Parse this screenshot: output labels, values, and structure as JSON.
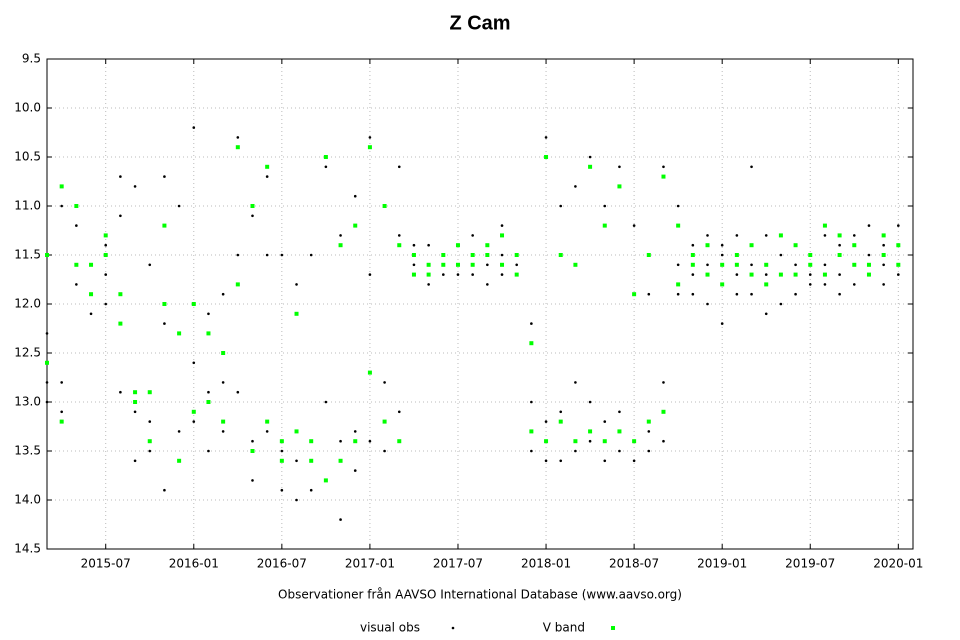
{
  "chart_data": {
    "type": "scatter",
    "title": "Z Cam",
    "x_label": "Observationer från AAVSO International Database (www.aavso.org)",
    "xlim": [
      "2015-03",
      "2020-02"
    ],
    "xticks": [
      "2015-07",
      "2016-01",
      "2016-07",
      "2017-01",
      "2017-07",
      "2018-01",
      "2018-07",
      "2019-01",
      "2019-07",
      "2020-01"
    ],
    "ylim": [
      9.5,
      14.5
    ],
    "y_inverted": true,
    "yticks": [
      9.5,
      {
        "value": 10,
        "label": "10.0"
      },
      10.5,
      {
        "value": 11,
        "label": "11.0"
      },
      11.5,
      {
        "value": 12,
        "label": "12.0"
      },
      12.5,
      {
        "value": 13,
        "label": "13.0"
      },
      13.5,
      {
        "value": 14,
        "label": "14.0"
      },
      14.5
    ],
    "grid": true,
    "legend": "bottom",
    "series": [
      {
        "name": "visual obs",
        "color": "#000000",
        "x": [
          "2015-03",
          "2015-03",
          "2015-03",
          "2015-04",
          "2015-04",
          "2015-04",
          "2015-05",
          "2015-05",
          "2015-05",
          "2015-06",
          "2015-06",
          "2015-06",
          "2015-07",
          "2015-07",
          "2015-07",
          "2015-08",
          "2015-08",
          "2015-08",
          "2015-09",
          "2015-09",
          "2015-09",
          "2015-10",
          "2015-10",
          "2015-10",
          "2015-11",
          "2015-11",
          "2015-11",
          "2015-12",
          "2015-12",
          "2015-12",
          "2016-01",
          "2016-01",
          "2016-01",
          "2016-02",
          "2016-02",
          "2016-02",
          "2016-03",
          "2016-03",
          "2016-03",
          "2016-04",
          "2016-04",
          "2016-04",
          "2016-05",
          "2016-05",
          "2016-05",
          "2016-06",
          "2016-06",
          "2016-06",
          "2016-07",
          "2016-07",
          "2016-07",
          "2016-08",
          "2016-08",
          "2016-08",
          "2016-09",
          "2016-09",
          "2016-09",
          "2016-10",
          "2016-10",
          "2016-10",
          "2016-11",
          "2016-11",
          "2016-11",
          "2016-12",
          "2016-12",
          "2016-12",
          "2017-01",
          "2017-01",
          "2017-01",
          "2017-02",
          "2017-02",
          "2017-02",
          "2017-03",
          "2017-03",
          "2017-03",
          "2017-04",
          "2017-04",
          "2017-04",
          "2017-05",
          "2017-05",
          "2017-05",
          "2017-06",
          "2017-06",
          "2017-06",
          "2017-07",
          "2017-07",
          "2017-07",
          "2017-08",
          "2017-08",
          "2017-08",
          "2017-09",
          "2017-09",
          "2017-09",
          "2017-10",
          "2017-10",
          "2017-10",
          "2017-11",
          "2017-11",
          "2017-11",
          "2017-12",
          "2017-12",
          "2017-12",
          "2018-01",
          "2018-01",
          "2018-01",
          "2018-02",
          "2018-02",
          "2018-02",
          "2018-03",
          "2018-03",
          "2018-03",
          "2018-04",
          "2018-04",
          "2018-04",
          "2018-05",
          "2018-05",
          "2018-05",
          "2018-06",
          "2018-06",
          "2018-06",
          "2018-07",
          "2018-07",
          "2018-07",
          "2018-08",
          "2018-08",
          "2018-08",
          "2018-09",
          "2018-09",
          "2018-09",
          "2018-10",
          "2018-10",
          "2018-10",
          "2018-11",
          "2018-11",
          "2018-11",
          "2018-12",
          "2018-12",
          "2018-12",
          "2019-01",
          "2019-01",
          "2019-01",
          "2019-02",
          "2019-02",
          "2019-02",
          "2019-03",
          "2019-03",
          "2019-03",
          "2019-04",
          "2019-04",
          "2019-04",
          "2019-05",
          "2019-05",
          "2019-05",
          "2019-06",
          "2019-06",
          "2019-06",
          "2019-07",
          "2019-07",
          "2019-07",
          "2019-08",
          "2019-08",
          "2019-08",
          "2019-09",
          "2019-09",
          "2019-09",
          "2019-10",
          "2019-10",
          "2019-10",
          "2019-11",
          "2019-11",
          "2019-11",
          "2019-12",
          "2019-12",
          "2019-12",
          "2020-01",
          "2020-01",
          "2020-01"
        ],
        "values": [
          12.3,
          12.8,
          13.0,
          11.0,
          12.8,
          13.1,
          11.2,
          11.6,
          11.8,
          11.6,
          11.9,
          12.1,
          11.7,
          11.4,
          12.0,
          10.7,
          11.1,
          12.9,
          10.8,
          13.1,
          13.6,
          11.6,
          13.2,
          13.5,
          10.7,
          12.2,
          13.9,
          11.0,
          13.3,
          13.6,
          10.2,
          12.6,
          13.2,
          12.1,
          12.9,
          13.5,
          11.9,
          12.8,
          13.3,
          10.3,
          11.5,
          12.9,
          11.1,
          13.4,
          13.8,
          10.7,
          11.5,
          13.3,
          11.5,
          13.5,
          13.9,
          11.8,
          13.6,
          14.0,
          11.5,
          13.4,
          13.9,
          10.6,
          13.0,
          13.8,
          11.3,
          13.4,
          14.2,
          10.9,
          13.3,
          13.7,
          10.3,
          11.7,
          13.4,
          11.0,
          12.8,
          13.5,
          10.6,
          11.3,
          13.1,
          11.4,
          11.6,
          11.7,
          11.4,
          11.6,
          11.8,
          11.5,
          11.6,
          11.7,
          11.4,
          11.6,
          11.7,
          11.3,
          11.5,
          11.7,
          11.4,
          11.6,
          11.8,
          11.2,
          11.5,
          11.7,
          11.5,
          11.6,
          11.7,
          12.2,
          13.0,
          13.5,
          10.3,
          13.2,
          13.6,
          11.0,
          13.1,
          13.6,
          10.8,
          12.8,
          13.5,
          10.5,
          13.0,
          13.4,
          11.0,
          13.2,
          13.6,
          10.6,
          13.1,
          13.5,
          11.2,
          13.4,
          13.6,
          11.9,
          13.3,
          13.5,
          10.6,
          12.8,
          13.4,
          11.0,
          11.6,
          11.9,
          11.4,
          11.7,
          11.9,
          11.3,
          11.6,
          12.0,
          11.4,
          11.5,
          12.2,
          11.3,
          11.7,
          11.9,
          10.6,
          11.6,
          11.9,
          11.3,
          11.7,
          12.1,
          11.5,
          11.7,
          12.0,
          11.4,
          11.6,
          11.9,
          11.5,
          11.7,
          11.8,
          11.3,
          11.6,
          11.8,
          11.4,
          11.7,
          11.9,
          11.3,
          11.6,
          11.8,
          11.2,
          11.5,
          11.7,
          11.4,
          11.6,
          11.8,
          11.2,
          11.6,
          11.7
        ]
      },
      {
        "name": "V band",
        "color": "#00ff00",
        "x": [
          "2015-03",
          "2015-03",
          "2015-04",
          "2015-04",
          "2015-05",
          "2015-05",
          "2015-06",
          "2015-06",
          "2015-07",
          "2015-07",
          "2015-08",
          "2015-08",
          "2015-09",
          "2015-09",
          "2015-10",
          "2015-10",
          "2015-11",
          "2015-11",
          "2015-12",
          "2015-12",
          "2016-01",
          "2016-01",
          "2016-02",
          "2016-02",
          "2016-03",
          "2016-03",
          "2016-04",
          "2016-04",
          "2016-05",
          "2016-05",
          "2016-06",
          "2016-06",
          "2016-07",
          "2016-07",
          "2016-08",
          "2016-08",
          "2016-09",
          "2016-09",
          "2016-10",
          "2016-10",
          "2016-11",
          "2016-11",
          "2016-12",
          "2016-12",
          "2017-01",
          "2017-01",
          "2017-02",
          "2017-02",
          "2017-03",
          "2017-03",
          "2017-04",
          "2017-04",
          "2017-05",
          "2017-05",
          "2017-06",
          "2017-06",
          "2017-07",
          "2017-07",
          "2017-08",
          "2017-08",
          "2017-09",
          "2017-09",
          "2017-10",
          "2017-10",
          "2017-11",
          "2017-11",
          "2017-12",
          "2017-12",
          "2018-01",
          "2018-01",
          "2018-02",
          "2018-02",
          "2018-03",
          "2018-03",
          "2018-04",
          "2018-04",
          "2018-05",
          "2018-05",
          "2018-06",
          "2018-06",
          "2018-07",
          "2018-07",
          "2018-08",
          "2018-08",
          "2018-09",
          "2018-09",
          "2018-10",
          "2018-10",
          "2018-11",
          "2018-11",
          "2018-12",
          "2018-12",
          "2019-01",
          "2019-01",
          "2019-02",
          "2019-02",
          "2019-03",
          "2019-03",
          "2019-04",
          "2019-04",
          "2019-05",
          "2019-05",
          "2019-06",
          "2019-06",
          "2019-07",
          "2019-07",
          "2019-08",
          "2019-08",
          "2019-09",
          "2019-09",
          "2019-10",
          "2019-10",
          "2019-11",
          "2019-11",
          "2019-12",
          "2019-12",
          "2020-01",
          "2020-01"
        ],
        "values": [
          11.5,
          12.6,
          10.8,
          13.2,
          11.0,
          11.6,
          11.9,
          11.6,
          11.5,
          11.3,
          11.9,
          12.2,
          13.0,
          12.9,
          12.9,
          13.4,
          11.2,
          12.0,
          12.3,
          13.6,
          13.1,
          12.0,
          12.3,
          13.0,
          12.5,
          13.2,
          10.4,
          11.8,
          13.5,
          11.0,
          10.6,
          13.2,
          13.4,
          13.6,
          12.1,
          13.3,
          13.6,
          13.4,
          10.5,
          13.8,
          13.6,
          11.4,
          13.4,
          11.2,
          10.4,
          12.7,
          13.2,
          11.0,
          11.4,
          13.4,
          11.5,
          11.7,
          11.6,
          11.7,
          11.6,
          11.5,
          11.4,
          11.6,
          11.5,
          11.6,
          11.5,
          11.4,
          11.6,
          11.3,
          11.5,
          11.7,
          12.4,
          13.3,
          10.5,
          13.4,
          13.2,
          11.5,
          11.6,
          13.4,
          10.6,
          13.3,
          11.2,
          13.4,
          10.8,
          13.3,
          13.4,
          11.9,
          13.2,
          11.5,
          10.7,
          13.1,
          11.2,
          11.8,
          11.6,
          11.5,
          11.7,
          11.4,
          11.6,
          11.8,
          11.5,
          11.6,
          11.4,
          11.7,
          11.6,
          11.8,
          11.3,
          11.7,
          11.7,
          11.4,
          11.6,
          11.5,
          11.2,
          11.7,
          11.5,
          11.3,
          11.4,
          11.6,
          11.6,
          11.7,
          11.5,
          11.3,
          11.6,
          11.4
        ]
      }
    ]
  }
}
